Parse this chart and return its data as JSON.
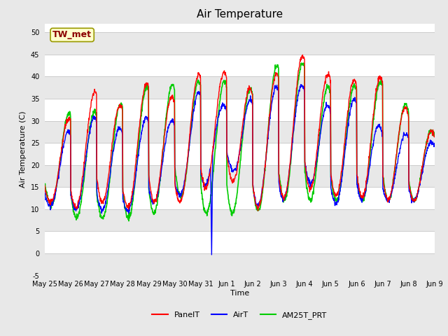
{
  "title": "Air Temperature",
  "ylabel": "Air Temperature (C)",
  "xlabel": "Time",
  "ylim": [
    -5,
    52
  ],
  "yticks": [
    -5,
    0,
    5,
    10,
    15,
    20,
    25,
    30,
    35,
    40,
    45,
    50
  ],
  "fig_bg_color": "#e8e8e8",
  "plot_bg_color": "#ffffff",
  "grid_color": "#cccccc",
  "band_colors": [
    "#e8e8e8",
    "#ffffff"
  ],
  "annotation_text": "TW_met",
  "annotation_color": "#8b0000",
  "annotation_bg": "#ffffcc",
  "annotation_edge": "#999900",
  "series": {
    "PanelT": {
      "color": "red",
      "lw": 1.0
    },
    "AirT": {
      "color": "blue",
      "lw": 1.0
    },
    "AM25T_PRT": {
      "color": "#00cc00",
      "lw": 1.2
    }
  },
  "legend_fontsize": 8,
  "title_fontsize": 11,
  "tick_fontsize": 7,
  "ylabel_fontsize": 8,
  "xlabel_fontsize": 8,
  "n_days": 15,
  "xtick_labels": [
    "May 25",
    "May 26",
    "May 27",
    "May 28",
    "May 29",
    "May 30",
    "May 31",
    "Jun 1",
    "Jun 2",
    "Jun 3",
    "Jun 4",
    "Jun 5",
    "Jun 6",
    "Jun 7",
    "Jun 8",
    "Jun 9"
  ],
  "daily_max_panelT": [
    26,
    31,
    37,
    33,
    39,
    35,
    41,
    41,
    37,
    41,
    45,
    40,
    39,
    40,
    32,
    27
  ],
  "daily_min_panelT": [
    12,
    10,
    12,
    10,
    12,
    11,
    14,
    18,
    10,
    12,
    15,
    13,
    13,
    12,
    12,
    12
  ],
  "daily_max_airT": [
    24,
    28,
    31,
    28,
    31,
    30,
    37,
    33,
    35,
    38,
    38,
    33,
    35,
    28,
    27,
    25
  ],
  "daily_min_airT": [
    11,
    10,
    10,
    9,
    11,
    13,
    14,
    21,
    11,
    11,
    17,
    11,
    12,
    12,
    12,
    12
  ],
  "daily_max_am25": [
    28,
    32,
    32,
    34,
    38,
    38,
    39,
    39,
    37,
    43,
    43,
    37,
    38,
    39,
    33,
    27
  ],
  "daily_min_am25": [
    12,
    8,
    8,
    8,
    8,
    14,
    9,
    9,
    9,
    12,
    12,
    12,
    12,
    12,
    12,
    12
  ],
  "spike_day": 6.42,
  "spike_value": -0.3
}
